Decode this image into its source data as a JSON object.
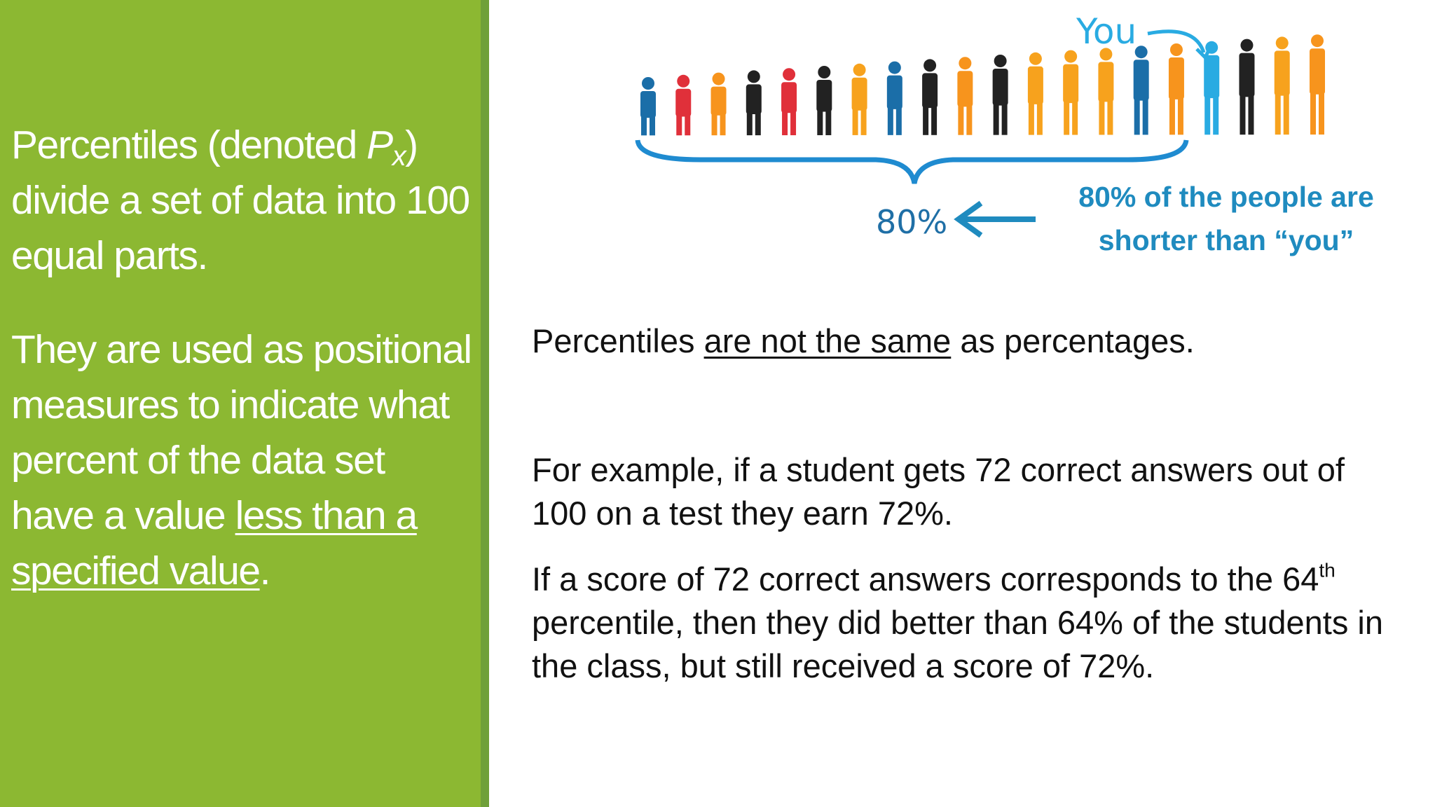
{
  "left": {
    "p1": [
      "Percentiles (denoted ",
      "P",
      "x",
      ") divide a set of data into 100 equal parts."
    ],
    "p2": [
      "They are used as positional measures to indicate what percent of the data set have a value ",
      "less than a specified value",
      "."
    ]
  },
  "figure": {
    "you_label": "You",
    "brace_label": "80%",
    "caption": "80% of the people are shorter than “you”"
  },
  "right": {
    "p1": [
      "Percentiles ",
      "are not the same",
      " as percentages."
    ],
    "p2": "For example, if a student gets 72 correct answers out of 100 on a test they earn 72%.",
    "p3": [
      "If a score of 72 correct answers corresponds to the 64",
      "th",
      " percentile, then they did better than 64% of the students in the class, but still received a score of 72%."
    ]
  }
}
